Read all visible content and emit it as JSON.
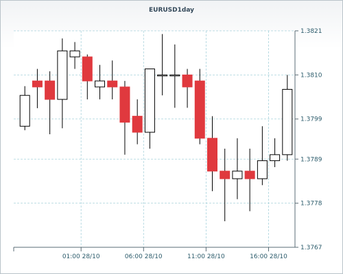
{
  "chart_data": {
    "type": "candlestick",
    "title": "EURUSD1day",
    "y_axis_position": "right",
    "ylim": [
      1.3767,
      1.3821
    ],
    "yticks": [
      "1.3821",
      "1.3810",
      "1.3799",
      "1.3789",
      "1.3778",
      "1.3767"
    ],
    "xticks": [
      {
        "label": "01:00 28/10",
        "index": 4.5
      },
      {
        "label": "06:00 28/10",
        "index": 9.5
      },
      {
        "label": "11:00 28/10",
        "index": 14.5
      },
      {
        "label": "16:00 28/10",
        "index": 19.5
      }
    ],
    "grid": true,
    "colors": {
      "up_fill": "#ffffff",
      "up_stroke": "#000000",
      "down_fill": "#e0393e",
      "grid": "#a8d2dc",
      "axis": "#5a6b74"
    },
    "candles": [
      {
        "open": 1.37972,
        "high": 1.38072,
        "low": 1.37962,
        "close": 1.38049
      },
      {
        "open": 1.38085,
        "high": 1.38115,
        "low": 1.38017,
        "close": 1.3807
      },
      {
        "open": 1.38085,
        "high": 1.38109,
        "low": 1.37952,
        "close": 1.38039
      },
      {
        "open": 1.38039,
        "high": 1.38191,
        "low": 1.37967,
        "close": 1.3816
      },
      {
        "open": 1.38145,
        "high": 1.38182,
        "low": 1.38115,
        "close": 1.3816
      },
      {
        "open": 1.38145,
        "high": 1.38151,
        "low": 1.38039,
        "close": 1.38085
      },
      {
        "open": 1.3807,
        "high": 1.38125,
        "low": 1.38039,
        "close": 1.38085
      },
      {
        "open": 1.38085,
        "high": 1.38136,
        "low": 1.38039,
        "close": 1.3807
      },
      {
        "open": 1.3807,
        "high": 1.38085,
        "low": 1.37901,
        "close": 1.37982
      },
      {
        "open": 1.37997,
        "high": 1.38039,
        "low": 1.37927,
        "close": 1.37957
      },
      {
        "open": 1.37957,
        "high": 1.38115,
        "low": 1.37916,
        "close": 1.38115
      },
      {
        "open": 1.381,
        "high": 1.38202,
        "low": 1.38049,
        "close": 1.381
      },
      {
        "open": 1.381,
        "high": 1.38176,
        "low": 1.38018,
        "close": 1.381
      },
      {
        "open": 1.381,
        "high": 1.38115,
        "low": 1.38018,
        "close": 1.3807
      },
      {
        "open": 1.38085,
        "high": 1.38115,
        "low": 1.37927,
        "close": 1.37942
      },
      {
        "open": 1.37942,
        "high": 1.37997,
        "low": 1.3781,
        "close": 1.3786
      },
      {
        "open": 1.3786,
        "high": 1.37916,
        "low": 1.37735,
        "close": 1.37841
      },
      {
        "open": 1.37841,
        "high": 1.37942,
        "low": 1.3779,
        "close": 1.3786
      },
      {
        "open": 1.3786,
        "high": 1.37916,
        "low": 1.3776,
        "close": 1.37841
      },
      {
        "open": 1.37841,
        "high": 1.37972,
        "low": 1.37825,
        "close": 1.37886
      },
      {
        "open": 1.37886,
        "high": 1.37942,
        "low": 1.3787,
        "close": 1.37901
      },
      {
        "open": 1.37901,
        "high": 1.381,
        "low": 1.37886,
        "close": 1.38064
      }
    ]
  }
}
